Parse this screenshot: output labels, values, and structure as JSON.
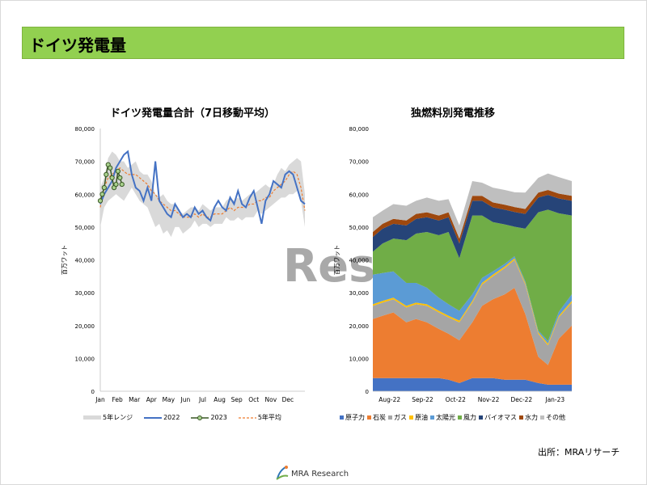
{
  "page": {
    "title": "ドイツ発電量",
    "source": "出所：MRAリサーチ",
    "logo_text": "MRA Research",
    "watermark": "Rese"
  },
  "colors": {
    "title_bar": "#92d050",
    "range_band": "#d9d9d9",
    "y2022": "#4472c4",
    "y2023": "#385723",
    "y2023_marker_fill": "#a9d18e",
    "avg5": "#ed7d31"
  },
  "chart_data": [
    {
      "type": "line",
      "title": "ドイツ発電量合計（7日移動平均）",
      "ylabel": "百万ワット",
      "ylim": [
        0,
        80000
      ],
      "yticks": [
        "0",
        "10,000",
        "20,000",
        "30,000",
        "40,000",
        "50,000",
        "60,000",
        "70,000",
        "80,000"
      ],
      "categories": [
        "Jan",
        "Feb",
        "Mar",
        "Apr",
        "May",
        "Jun",
        "Jul",
        "Aug",
        "Sep",
        "Oct",
        "Nov",
        "Dec"
      ],
      "x_unit": "week",
      "xlim": [
        0,
        52
      ],
      "legend": [
        "5年レンジ",
        "2022",
        "2023",
        "5年平均"
      ],
      "legend_position": "bottom",
      "range_band": {
        "x": [
          0,
          1,
          2,
          3,
          4,
          5,
          6,
          7,
          8,
          9,
          10,
          11,
          12,
          13,
          14,
          15,
          16,
          17,
          18,
          19,
          20,
          21,
          22,
          23,
          24,
          25,
          26,
          27,
          28,
          29,
          30,
          31,
          32,
          33,
          34,
          35,
          36,
          37,
          38,
          39,
          40,
          41,
          42,
          43,
          44,
          45,
          46,
          47,
          48,
          49,
          50,
          51,
          52
        ],
        "low": [
          50000,
          56000,
          58000,
          59000,
          60000,
          59000,
          58000,
          60000,
          62000,
          60000,
          58000,
          57000,
          56000,
          53000,
          50000,
          51000,
          48000,
          49000,
          47000,
          50000,
          50000,
          48000,
          49000,
          50000,
          52000,
          50000,
          51000,
          51000,
          50000,
          51000,
          51000,
          51000,
          53000,
          52000,
          52000,
          53000,
          52000,
          53000,
          53000,
          53000,
          55000,
          54000,
          55000,
          56000,
          57000,
          58000,
          59000,
          59000,
          60000,
          60000,
          61000,
          58000,
          50000
        ],
        "high": [
          62000,
          65000,
          71000,
          73000,
          72000,
          70000,
          70000,
          68000,
          69000,
          70000,
          67000,
          66000,
          66000,
          64000,
          60000,
          59000,
          60000,
          58000,
          57000,
          57000,
          55000,
          54000,
          55000,
          56000,
          56000,
          55000,
          57000,
          56000,
          55000,
          56000,
          56000,
          56000,
          58000,
          59000,
          58000,
          59000,
          58000,
          59000,
          60000,
          60000,
          61000,
          62000,
          63000,
          62000,
          63000,
          66000,
          68000,
          67000,
          69000,
          70000,
          71000,
          70000,
          60000
        ]
      },
      "series": [
        {
          "name": "2022",
          "x": [
            0,
            1,
            2,
            3,
            4,
            5,
            6,
            7,
            8,
            9,
            10,
            11,
            12,
            13,
            14,
            15,
            16,
            17,
            18,
            19,
            20,
            21,
            22,
            23,
            24,
            25,
            26,
            27,
            28,
            29,
            30,
            31,
            32,
            33,
            34,
            35,
            36,
            37,
            38,
            39,
            40,
            41,
            42,
            43,
            44,
            45,
            46,
            47,
            48,
            49,
            50,
            51,
            52
          ],
          "values": [
            57000,
            60000,
            62000,
            64000,
            68000,
            70000,
            72000,
            73000,
            66000,
            62000,
            61000,
            58000,
            62000,
            58000,
            70000,
            58000,
            56000,
            54000,
            53000,
            57000,
            55000,
            53000,
            54000,
            53000,
            56000,
            54000,
            55000,
            53000,
            52000,
            56000,
            58000,
            56000,
            55000,
            59000,
            57000,
            61000,
            57000,
            56000,
            59000,
            61000,
            56000,
            51000,
            58000,
            60000,
            64000,
            63000,
            62000,
            66000,
            67000,
            66000,
            62000,
            58000,
            57000
          ]
        },
        {
          "name": "2023",
          "x": [
            0,
            0.5,
            1,
            1.5,
            2,
            2.5,
            3,
            3.5,
            4,
            4.5,
            5,
            5.5
          ],
          "values": [
            58000,
            60000,
            62000,
            66000,
            69000,
            68000,
            65000,
            62000,
            63000,
            67000,
            65000,
            63000
          ]
        },
        {
          "name": "5年平均",
          "x": [
            0,
            1,
            2,
            3,
            4,
            5,
            6,
            7,
            8,
            9,
            10,
            11,
            12,
            13,
            14,
            15,
            16,
            17,
            18,
            19,
            20,
            21,
            22,
            23,
            24,
            25,
            26,
            27,
            28,
            29,
            30,
            31,
            32,
            33,
            34,
            35,
            36,
            37,
            38,
            39,
            40,
            41,
            42,
            43,
            44,
            45,
            46,
            47,
            48,
            49,
            50,
            51,
            52
          ],
          "values": [
            56000,
            62000,
            65000,
            66000,
            67000,
            68000,
            67000,
            66000,
            66000,
            66000,
            65000,
            64000,
            63000,
            61000,
            60000,
            58000,
            57000,
            56000,
            55000,
            55000,
            54000,
            53000,
            53000,
            53000,
            54000,
            53000,
            54000,
            53000,
            53000,
            54000,
            54000,
            54000,
            55000,
            56000,
            55000,
            56000,
            56000,
            56000,
            57000,
            57000,
            58000,
            58000,
            59000,
            59000,
            61000,
            62000,
            63000,
            64000,
            66000,
            67000,
            66000,
            62000,
            55000
          ]
        }
      ]
    },
    {
      "type": "area",
      "stacked": true,
      "title": "独燃料別発電推移",
      "ylabel": "百万ワット",
      "ylim": [
        0,
        80000
      ],
      "yticks": [
        "0",
        "10,000",
        "20,000",
        "30,000",
        "40,000",
        "50,000",
        "60,000",
        "70,000",
        "80,000"
      ],
      "categories": [
        "Aug-22",
        "Sep-22",
        "Oct-22",
        "Nov-22",
        "Dec-22",
        "Jan-23"
      ],
      "x": [
        "2022-08-01",
        "2022-08-10",
        "2022-08-20",
        "2022-09-01",
        "2022-09-10",
        "2022-09-20",
        "2022-10-01",
        "2022-10-10",
        "2022-10-20",
        "2022-11-01",
        "2022-11-10",
        "2022-11-20",
        "2022-12-01",
        "2022-12-10",
        "2022-12-20",
        "2023-01-01",
        "2023-01-10",
        "2023-01-20",
        "2023-02-01"
      ],
      "xlim": [
        "2022-08-01",
        "2023-02-01"
      ],
      "legend_position": "bottom",
      "series": [
        {
          "name": "原子力",
          "color": "#4472c4",
          "values": [
            4000,
            4000,
            4000,
            4000,
            4000,
            4000,
            4000,
            3500,
            2500,
            4000,
            4000,
            4000,
            3500,
            3500,
            3500,
            2500,
            2000,
            2000,
            2000
          ]
        },
        {
          "name": "石炭",
          "color": "#ed7d31",
          "values": [
            18000,
            19000,
            20000,
            17000,
            18000,
            17000,
            15000,
            14000,
            13000,
            17000,
            22000,
            24000,
            26000,
            28000,
            20000,
            8000,
            6000,
            14000,
            18000
          ]
        },
        {
          "name": "ガス",
          "color": "#a5a5a5",
          "values": [
            4000,
            4000,
            4000,
            4500,
            4500,
            5000,
            5000,
            5000,
            5500,
            6000,
            6500,
            7000,
            8000,
            8500,
            9000,
            7000,
            6000,
            6500,
            7000
          ]
        },
        {
          "name": "原油",
          "color": "#ffc000",
          "values": [
            500,
            500,
            500,
            500,
            500,
            500,
            500,
            500,
            500,
            500,
            500,
            500,
            500,
            500,
            500,
            500,
            500,
            500,
            500
          ]
        },
        {
          "name": "太陽光",
          "color": "#5b9bd5",
          "values": [
            9000,
            8500,
            8000,
            7000,
            6000,
            5000,
            4000,
            3500,
            3000,
            2000,
            1500,
            1000,
            800,
            600,
            500,
            500,
            800,
            1200,
            2000
          ]
        },
        {
          "name": "風力",
          "color": "#70ad47",
          "values": [
            7000,
            9000,
            10000,
            13000,
            15000,
            17000,
            19000,
            22000,
            16000,
            24000,
            19000,
            15000,
            12000,
            9000,
            16000,
            36000,
            40000,
            30000,
            24000
          ]
        },
        {
          "name": "バイオマス",
          "color": "#264478",
          "values": [
            4500,
            4500,
            4500,
            4500,
            4500,
            4500,
            4500,
            4500,
            4500,
            4500,
            4500,
            4500,
            4500,
            4500,
            4500,
            4500,
            4500,
            4500,
            4500
          ]
        },
        {
          "name": "水力",
          "color": "#9e480e",
          "values": [
            1500,
            1500,
            1500,
            1500,
            1500,
            1500,
            1500,
            1500,
            1500,
            1500,
            1500,
            1500,
            1500,
            1500,
            1500,
            1500,
            1500,
            1500,
            1500
          ]
        },
        {
          "name": "その他",
          "color": "#bfbfbf",
          "values": [
            4500,
            4000,
            4500,
            4500,
            4000,
            4500,
            4500,
            4000,
            4000,
            4500,
            4000,
            4500,
            4500,
            4500,
            5000,
            4500,
            5000,
            5000,
            4500
          ]
        }
      ]
    }
  ]
}
